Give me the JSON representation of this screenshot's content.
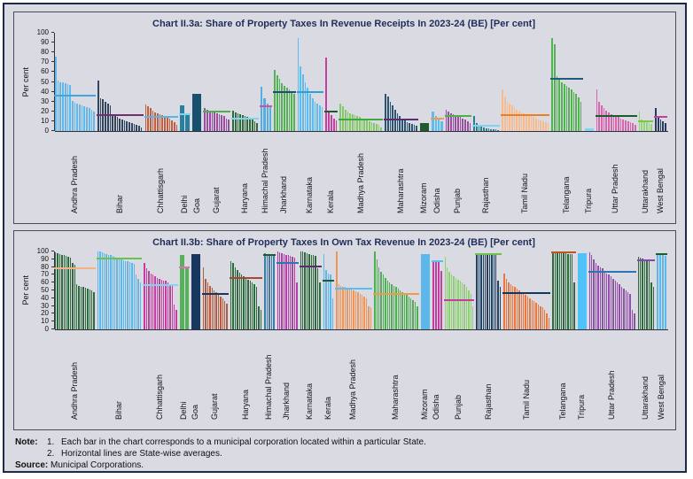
{
  "notes": {
    "label": "Note:",
    "item1_num": "1.",
    "item1": "Each bar in the chart corresponds to a municipal corporation located within a particular State.",
    "item2_num": "2.",
    "item2": "Horizontal lines are State-wise averages.",
    "source_label": "Source:",
    "source": "Municipal Corporations."
  },
  "chart_data": [
    {
      "type": "bar",
      "title": "Chart II.3a: Share of Property Taxes In Revenue Receipts In 2023-24 (BE) [Per cent]",
      "ylabel": "Per cent",
      "ylim": [
        0,
        100
      ],
      "ytick_step": 10,
      "grid": false,
      "legend": "none",
      "note": "each bar = one municipal corporation; horizontal line = state-wise average",
      "groups": [
        {
          "state": "Andhra Pradesh",
          "color": "#62b8e8",
          "avg": 36,
          "avg_color": "#3ea7e0",
          "values": [
            76,
            51,
            50,
            50,
            49,
            48,
            47,
            31,
            29,
            28,
            27,
            26,
            25,
            24,
            23,
            22,
            20
          ]
        },
        {
          "state": "Bihar",
          "color": "#32455f",
          "avg": 16,
          "avg_color": "#722f6d",
          "values": [
            51,
            33,
            32,
            30,
            28,
            26,
            17,
            15,
            14,
            13,
            12,
            11,
            10,
            9,
            8,
            7,
            6,
            5,
            4
          ]
        },
        {
          "state": "Chhattisgarh",
          "color": "#bf5f40",
          "avg": 14,
          "avg_color": "#55b6e8",
          "values": [
            27,
            25,
            23,
            21,
            19,
            18,
            17,
            16,
            15,
            14,
            13,
            11,
            9,
            6
          ]
        },
        {
          "state": "Delhi",
          "color": "#2a7f9e",
          "avg": 17,
          "avg_color": "#7fd4f2",
          "values": [
            26,
            17
          ]
        },
        {
          "state": "Goa",
          "color": "#16506e",
          "avg": null,
          "avg_color": null,
          "values": [
            38
          ]
        },
        {
          "state": "Gujarat",
          "color": "#9a4f9e",
          "avg": 20,
          "avg_color": "#4cb04c",
          "values": [
            23,
            22,
            21,
            20,
            19,
            18,
            17,
            16,
            15,
            13,
            12
          ]
        },
        {
          "state": "Haryana",
          "color": "#2f6b3a",
          "avg": 13,
          "avg_color": "#7fd4f2",
          "values": [
            21,
            19,
            18,
            17,
            16,
            15,
            14,
            13,
            12,
            10,
            8
          ]
        },
        {
          "state": "Himachal Pradesh",
          "color": "#55aee0",
          "avg": 25,
          "avg_color": "#d94f9f",
          "values": [
            45,
            33,
            28,
            25
          ]
        },
        {
          "state": "Jharkhand",
          "color": "#54b154",
          "avg": 40,
          "avg_color": "#1f4e79",
          "values": [
            62,
            57,
            53,
            49,
            46,
            44,
            42,
            40,
            38
          ]
        },
        {
          "state": "Karnataka",
          "color": "#5cbcee",
          "avg": 40,
          "avg_color": "#2f9fd8",
          "values": [
            95,
            66,
            58,
            50,
            44,
            38,
            33,
            30,
            28,
            26,
            24
          ]
        },
        {
          "state": "Kerala",
          "color": "#c43f9f",
          "avg": 20,
          "avg_color": "#1e5c2e",
          "values": [
            75,
            21,
            16,
            13,
            11
          ]
        },
        {
          "state": "Madhya Pradesh",
          "color": "#83c967",
          "avg": 12,
          "avg_color": "#3fa83f",
          "values": [
            28,
            25,
            22,
            20,
            18,
            17,
            16,
            15,
            14,
            13,
            12,
            11,
            10,
            9,
            8,
            7,
            6,
            4
          ]
        },
        {
          "state": "Maharashtra",
          "color": "#2a5470",
          "avg": 12,
          "avg_color": "#5b2c6f",
          "values": [
            38,
            35,
            30,
            26,
            22,
            18,
            15,
            13,
            11,
            9,
            8,
            7,
            6,
            5
          ]
        },
        {
          "state": "Mizoram",
          "color": "#1e5c2e",
          "avg": null,
          "avg_color": null,
          "values": [
            8
          ]
        },
        {
          "state": "Odisha",
          "color": "#5cbcee",
          "avg": 13,
          "avg_color": "#f2994a",
          "values": [
            20,
            15,
            12,
            10
          ]
        },
        {
          "state": "Punjab",
          "color": "#9a4f9e",
          "avg": 15,
          "avg_color": "#4cb04c",
          "values": [
            22,
            20,
            18,
            17,
            16,
            15,
            14,
            13,
            12,
            10,
            8
          ]
        },
        {
          "state": "Rajasthan",
          "color": "#2a7f8e",
          "avg": 5,
          "avg_color": "#7fd4f2",
          "values": [
            15,
            8,
            6,
            5,
            4,
            3,
            3,
            2,
            2,
            2,
            1
          ]
        },
        {
          "state": "Tamil Nadu",
          "color": "#f8bc8c",
          "avg": 16,
          "avg_color": "#ef7d26",
          "values": [
            42,
            35,
            30,
            28,
            26,
            24,
            22,
            20,
            19,
            18,
            17,
            16,
            15,
            14,
            13,
            12,
            11,
            10,
            9,
            8
          ]
        },
        {
          "state": "Telangana",
          "color": "#54b154",
          "avg": 53,
          "avg_color": "#1f5b7e",
          "values": [
            95,
            88,
            56,
            53,
            50,
            48,
            46,
            44,
            42,
            40,
            38,
            34,
            30
          ]
        },
        {
          "state": "Tripura",
          "color": "#7fd4f2",
          "avg": null,
          "avg_color": null,
          "values": [
            3
          ]
        },
        {
          "state": "Uttar Pradesh",
          "color": "#d863ae",
          "avg": 15,
          "avg_color": "#1c5b2a",
          "values": [
            42,
            30,
            26,
            23,
            21,
            19,
            17,
            16,
            15,
            14,
            13,
            12,
            11,
            10,
            9,
            8,
            6
          ]
        },
        {
          "state": "Uttarakhand",
          "color": "#96d47a",
          "avg": 10,
          "avg_color": "#7ac943",
          "values": [
            20,
            12,
            10,
            9,
            8,
            7
          ]
        },
        {
          "state": "West Bengal",
          "color": "#253c5e",
          "avg": 14,
          "avg_color": "#c43f9f",
          "values": [
            23,
            15,
            12,
            10,
            8
          ]
        }
      ]
    },
    {
      "type": "bar",
      "title": "Chart II.3b: Share of Property Taxes In Own Tax Revenue In 2023-24 (BE) [Per cent]",
      "ylabel": "Per cent",
      "ylim": [
        0,
        100
      ],
      "ytick_step": 10,
      "grid": false,
      "legend": "none",
      "note": "each bar = one municipal corporation; horizontal line = state-wise average",
      "groups": [
        {
          "state": "Andhra Pradesh",
          "color": "#2e6b3c",
          "avg": 78,
          "avg_color": "#f5b183",
          "values": [
            99,
            98,
            97,
            96,
            95,
            94,
            93,
            92,
            85,
            83,
            58,
            56,
            55,
            54,
            53,
            52,
            51,
            50,
            48
          ]
        },
        {
          "state": "Bihar",
          "color": "#5cb8ea",
          "avg": 91,
          "avg_color": "#6cc24a",
          "values": [
            100,
            100,
            99,
            98,
            97,
            96,
            95,
            94,
            93,
            92,
            91,
            90,
            89,
            88,
            87,
            86,
            85,
            84,
            70,
            65,
            60
          ]
        },
        {
          "state": "Chhattisgarh",
          "color": "#c23f9f",
          "avg": 57,
          "avg_color": "#7fd4f2",
          "values": [
            85,
            78,
            75,
            72,
            70,
            68,
            66,
            65,
            64,
            63,
            62,
            60,
            58,
            56,
            32,
            25
          ]
        },
        {
          "state": "Delhi",
          "color": "#56b15a",
          "avg": 80,
          "avg_color": "#e86ab4",
          "values": [
            95,
            78
          ]
        },
        {
          "state": "Goa",
          "color": "#17375e",
          "avg": null,
          "avg_color": null,
          "values": [
            97
          ]
        },
        {
          "state": "Gujarat",
          "color": "#b55a3d",
          "avg": 46,
          "avg_color": "#17375e",
          "values": [
            80,
            65,
            60,
            56,
            53,
            50,
            48,
            45,
            42,
            40,
            36,
            33
          ]
        },
        {
          "state": "Haryana",
          "color": "#2e6b3c",
          "avg": 66,
          "avg_color": "#a94438",
          "values": [
            88,
            85,
            80,
            76,
            73,
            70,
            68,
            66,
            64,
            62,
            60,
            58,
            55,
            30,
            25
          ]
        },
        {
          "state": "Himachal Pradesh",
          "color": "#3f7ca8",
          "avg": 96,
          "avg_color": "#1e5c2e",
          "values": [
            98,
            97,
            96,
            95,
            94
          ]
        },
        {
          "state": "Jharkhand",
          "color": "#b13fa5",
          "avg": 85,
          "avg_color": "#2e75b6",
          "values": [
            100,
            99,
            98,
            97,
            96,
            95,
            94,
            93,
            92,
            60
          ]
        },
        {
          "state": "Karnataka",
          "color": "#2e6b3c",
          "avg": 81,
          "avg_color": "#5b2c6f",
          "values": [
            100,
            100,
            99,
            98,
            97,
            96,
            95,
            94,
            78,
            60
          ]
        },
        {
          "state": "Kerala",
          "color": "#5cb8ea",
          "avg": 63,
          "avg_color": "#1e5c2e",
          "values": [
            97,
            76,
            72,
            70,
            40
          ]
        },
        {
          "state": "Madhya Pradesh",
          "color": "#f09556",
          "avg": 52,
          "avg_color": "#4fc3f7",
          "values": [
            100,
            58,
            56,
            55,
            54,
            53,
            52,
            51,
            50,
            49,
            48,
            46,
            44,
            42,
            40,
            30,
            28
          ]
        },
        {
          "state": "Maharashtra",
          "color": "#4fad54",
          "avg": 45,
          "avg_color": "#f2994a",
          "values": [
            100,
            90,
            80,
            74,
            70,
            66,
            63,
            60,
            58,
            56,
            54,
            52,
            50,
            48,
            46,
            44,
            42,
            40,
            38,
            35,
            30
          ]
        },
        {
          "state": "Mizoram",
          "color": "#5cb8ea",
          "avg": null,
          "avg_color": null,
          "values": [
            97
          ]
        },
        {
          "state": "Odisha",
          "color": "#c23f9f",
          "avg": 88,
          "avg_color": "#4fc3f7",
          "values": [
            88,
            87,
            86,
            75
          ]
        },
        {
          "state": "Punjab",
          "color": "#8fd073",
          "avg": 37,
          "avg_color": "#c93a9e",
          "values": [
            93,
            80,
            74,
            71,
            68,
            66,
            64,
            62,
            60,
            58,
            55,
            50,
            45,
            30
          ]
        },
        {
          "state": "Rajasthan",
          "color": "#1f4262",
          "avg": 97,
          "avg_color": "#6cc24a",
          "values": [
            98,
            98,
            98,
            98,
            98,
            98,
            98,
            98,
            98,
            98,
            62,
            55
          ]
        },
        {
          "state": "Tamil Nadu",
          "color": "#e87840",
          "avg": 47,
          "avg_color": "#17375e",
          "values": [
            72,
            65,
            60,
            58,
            56,
            54,
            52,
            50,
            48,
            46,
            44,
            42,
            40,
            38,
            36,
            34,
            32,
            30,
            28,
            25,
            20,
            15
          ]
        },
        {
          "state": "Telangana",
          "color": "#2e6b3c",
          "avg": 99,
          "avg_color": "#c0531f",
          "values": [
            99,
            99,
            99,
            98,
            98,
            98,
            98,
            97,
            97,
            97,
            60
          ]
        },
        {
          "state": "Tripura",
          "color": "#4fc3f7",
          "avg": null,
          "avg_color": null,
          "values": [
            98
          ]
        },
        {
          "state": "Uttar Pradesh",
          "color": "#9150a8",
          "avg": 74,
          "avg_color": "#2e75b6",
          "values": [
            99,
            95,
            90,
            85,
            82,
            80,
            78,
            75,
            72,
            70,
            68,
            65,
            62,
            60,
            58,
            55,
            52,
            50,
            48,
            46,
            25,
            20
          ]
        },
        {
          "state": "Uttarakhand",
          "color": "#2e6b3c",
          "avg": 89,
          "avg_color": "#8e44ad",
          "values": [
            93,
            92,
            91,
            90,
            90,
            89,
            60,
            55
          ]
        },
        {
          "state": "West Bengal",
          "color": "#5cb8ea",
          "avg": 97,
          "avg_color": "#1e5c2e",
          "values": [
            97,
            96,
            95,
            94
          ]
        }
      ]
    }
  ]
}
